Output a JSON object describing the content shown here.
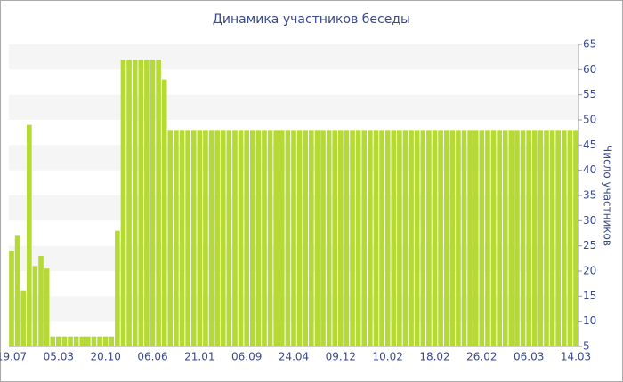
{
  "chart_data": {
    "type": "bar",
    "title": "Динамика участников беседы",
    "y_label": "Число участников",
    "categories": [
      "19.07",
      null,
      null,
      null,
      null,
      null,
      null,
      null,
      "05.03",
      null,
      null,
      null,
      null,
      null,
      null,
      null,
      "20.10",
      null,
      null,
      null,
      null,
      null,
      null,
      null,
      "06.06",
      null,
      null,
      null,
      null,
      null,
      null,
      null,
      "21.01",
      null,
      null,
      null,
      null,
      null,
      null,
      null,
      "06.09",
      null,
      null,
      null,
      null,
      null,
      null,
      null,
      "24.04",
      null,
      null,
      null,
      null,
      null,
      null,
      null,
      "09.12",
      null,
      null,
      null,
      null,
      null,
      null,
      null,
      "10.02",
      null,
      null,
      null,
      null,
      null,
      null,
      null,
      "18.02",
      null,
      null,
      null,
      null,
      null,
      null,
      null,
      "26.02",
      null,
      null,
      null,
      null,
      null,
      null,
      null,
      "06.03",
      null,
      null,
      null,
      null,
      null,
      null,
      null,
      "14.03"
    ],
    "values": [
      24,
      27,
      16,
      49,
      21,
      23,
      20.5,
      7,
      7,
      7,
      7,
      7,
      7,
      7,
      7,
      7,
      7,
      7,
      28,
      62,
      62,
      62,
      62,
      62,
      62,
      62,
      58,
      48,
      48,
      48,
      48,
      48,
      48,
      48,
      48,
      48,
      48,
      48,
      48,
      48,
      48,
      48,
      48,
      48,
      48,
      48,
      48,
      48,
      48,
      48,
      48,
      48,
      48,
      48,
      48,
      48,
      48,
      48,
      48,
      48,
      48,
      48,
      48,
      48,
      48,
      48,
      48,
      48,
      48,
      48,
      48,
      48,
      48,
      48,
      48,
      48,
      48,
      48,
      48,
      48,
      48,
      48,
      48,
      48,
      48,
      48,
      48,
      48,
      48,
      48,
      48,
      48,
      48,
      48,
      48,
      48,
      48
    ],
    "color": "#b5d935",
    "ylim": [
      5,
      65
    ],
    "yticks": [
      5,
      10,
      15,
      20,
      25,
      30,
      35,
      40,
      45,
      50,
      55,
      60,
      65
    ],
    "grid": "bands"
  }
}
